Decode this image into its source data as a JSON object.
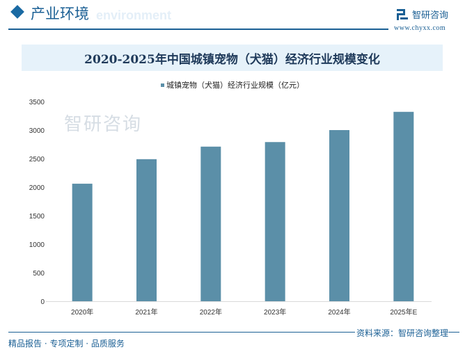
{
  "header": {
    "section_title": "产业环境",
    "section_subtitle": "environment",
    "logo_text": "智研咨询",
    "logo_url": "www.chyxx.com"
  },
  "footer": {
    "tagline": "精品报告 · 专项定制 · 品质服务",
    "source": "资料来源：智研咨询整理",
    "watermark": "智研咨询"
  },
  "colors": {
    "bar": "#5b8fa8",
    "accent": "#1a5f94",
    "title_bg": "#e6f2fa"
  },
  "chart_data": {
    "type": "bar",
    "title": "2020-2025年中国城镇宠物（犬猫）经济行业规模变化",
    "categories": [
      "2020年",
      "2021年",
      "2022年",
      "2023年",
      "2024年",
      "2025年E"
    ],
    "series": [
      {
        "name": "城镇宠物（犬猫）经济行业规模（亿元）",
        "values": [
          2060,
          2490,
          2710,
          2790,
          3000,
          3320
        ]
      }
    ],
    "ylim": [
      0,
      3500
    ],
    "yticks": [
      0,
      500,
      1000,
      1500,
      2000,
      2500,
      3000,
      3500
    ],
    "legend": "top-center",
    "grid": false,
    "xlabel": "",
    "ylabel": ""
  }
}
